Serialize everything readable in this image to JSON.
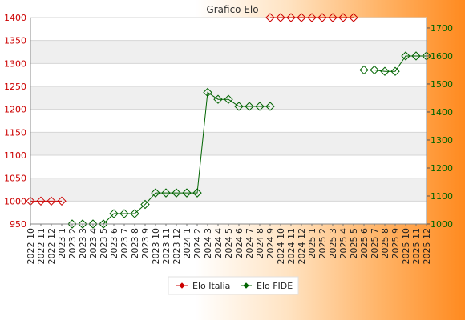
{
  "chart_data": {
    "type": "line",
    "title": "Grafico Elo",
    "xlabel": "",
    "ylabel": "",
    "categories": [
      "2022 10",
      "2022 11",
      "2022 12",
      "2023 1",
      "2023 2",
      "2023 3",
      "2023 4",
      "2023 5",
      "2023 6",
      "2023 7",
      "2023 8",
      "2023 9",
      "2023 10",
      "2023 11",
      "2023 12",
      "2024 1",
      "2024 2",
      "2024 3",
      "2024 4",
      "2024 5",
      "2024 6",
      "2024 7",
      "2024 8",
      "2024 9",
      "2024 10",
      "2024 11",
      "2024 12",
      "2025 1",
      "2025 2",
      "2025 3",
      "2025 4",
      "2025 5",
      "2025 6",
      "2025 7",
      "2025 8",
      "2025 9",
      "2025 10",
      "2025 11",
      "2025 12"
    ],
    "y_left": {
      "min": 950,
      "max": 1400,
      "ticks": [
        950,
        1000,
        1050,
        1100,
        1150,
        1200,
        1250,
        1300,
        1350,
        1400
      ],
      "color": "#cc0000"
    },
    "y_right": {
      "min": 1000,
      "max": 1737,
      "ticks": [
        1000,
        1100,
        1200,
        1300,
        1400,
        1500,
        1600,
        1700
      ],
      "color": "#006400"
    },
    "grid": true,
    "legend_position": "bottom",
    "series": [
      {
        "name": "Elo Italia",
        "axis": "left",
        "color": "#cc0000",
        "values": [
          1000,
          1000,
          1000,
          1000,
          null,
          null,
          null,
          null,
          null,
          null,
          null,
          null,
          null,
          null,
          null,
          null,
          null,
          null,
          null,
          null,
          null,
          null,
          null,
          1400,
          1400,
          1400,
          1400,
          1400,
          1400,
          1400,
          1400,
          1400,
          null,
          null,
          null,
          null,
          null,
          null,
          null
        ]
      },
      {
        "name": "Elo FIDE",
        "axis": "right",
        "color": "#006400",
        "values": [
          null,
          null,
          null,
          null,
          1000,
          1000,
          1000,
          1000,
          1037,
          1037,
          1037,
          1070,
          1111,
          1111,
          1111,
          1111,
          1111,
          1470,
          1445,
          1445,
          1420,
          1420,
          1420,
          1420,
          null,
          null,
          null,
          null,
          null,
          null,
          null,
          null,
          1550,
          1550,
          1545,
          1545,
          1600,
          1600,
          1600
        ]
      }
    ]
  }
}
